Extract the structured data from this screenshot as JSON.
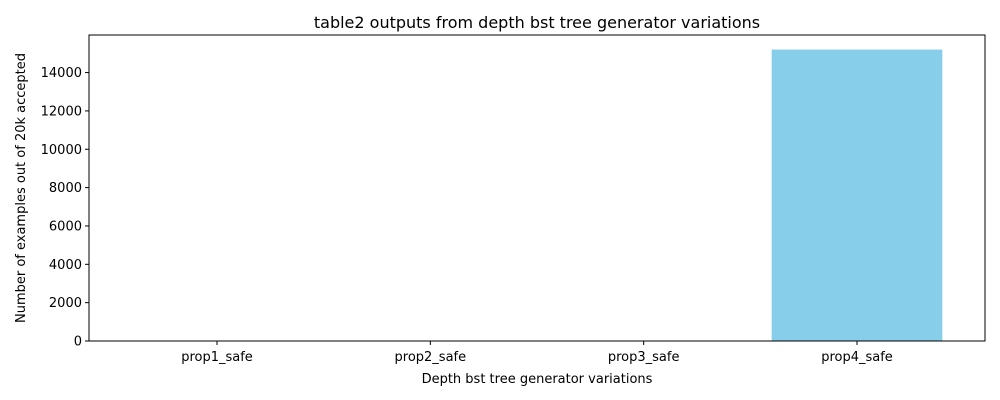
{
  "chart_data": {
    "type": "bar",
    "title": "table2 outputs from depth bst tree generator variations",
    "xlabel": "Depth bst tree generator variations",
    "ylabel": "Number of examples out of 20k accepted",
    "categories": [
      "prop1_safe",
      "prop2_safe",
      "prop3_safe",
      "prop4_safe"
    ],
    "values": [
      0,
      0,
      0,
      15200
    ],
    "ylim": [
      0,
      15960
    ],
    "yticks": [
      0,
      2000,
      4000,
      6000,
      8000,
      10000,
      12000,
      14000
    ],
    "bar_color": "#87ceeb",
    "grid": false,
    "legend": "none"
  }
}
